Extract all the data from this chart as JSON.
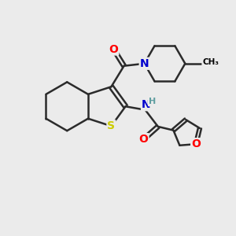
{
  "bg_color": "#ebebeb",
  "atom_colors": {
    "C": "#000000",
    "N": "#0000cd",
    "O": "#ff0000",
    "S": "#cccc00",
    "H": "#5f9ea0"
  },
  "bond_color": "#2b2b2b",
  "bond_width": 1.8,
  "fig_size": [
    3.0,
    3.0
  ],
  "dpi": 100
}
